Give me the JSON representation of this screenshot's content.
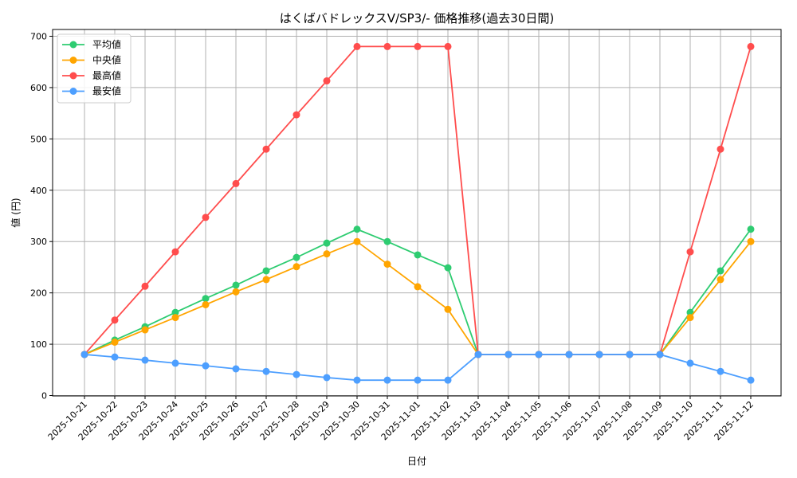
{
  "chart_data": {
    "type": "line",
    "title": "はくばバドレックスV/SP3/- 価格推移(過去30日間)",
    "xlabel": "日付",
    "ylabel": "値 (円)",
    "ylim": [
      0,
      700
    ],
    "yticks": [
      0,
      100,
      200,
      300,
      400,
      500,
      600,
      700
    ],
    "grid": true,
    "legend": "top-left",
    "categories": [
      "2025-10-21",
      "2025-10-22",
      "2025-10-23",
      "2025-10-24",
      "2025-10-25",
      "2025-10-26",
      "2025-10-27",
      "2025-10-28",
      "2025-10-29",
      "2025-10-30",
      "2025-10-31",
      "2025-11-01",
      "2025-11-02",
      "2025-11-03",
      "2025-11-04",
      "2025-11-05",
      "2025-11-06",
      "2025-11-07",
      "2025-11-08",
      "2025-11-09",
      "2025-11-10",
      "2025-11-11",
      "2025-11-12"
    ],
    "series": [
      {
        "name": "平均値",
        "color": "#2ecc71",
        "values": [
          80,
          108,
          134,
          162,
          189,
          215,
          243,
          269,
          297,
          324,
          300,
          274,
          249,
          80,
          80,
          80,
          80,
          80,
          80,
          80,
          162,
          243,
          324
        ]
      },
      {
        "name": "中央値",
        "color": "#ffa500",
        "values": [
          80,
          104,
          128,
          152,
          177,
          202,
          226,
          251,
          276,
          300,
          256,
          212,
          168,
          80,
          80,
          80,
          80,
          80,
          80,
          80,
          152,
          226,
          300
        ]
      },
      {
        "name": "最高値",
        "color": "#ff4d4d",
        "values": [
          80,
          147,
          213,
          280,
          347,
          413,
          480,
          547,
          613,
          680,
          680,
          680,
          680,
          80,
          80,
          80,
          80,
          80,
          80,
          80,
          280,
          480,
          680
        ]
      },
      {
        "name": "最安値",
        "color": "#4d9fff",
        "values": [
          80,
          75,
          69,
          63,
          58,
          52,
          47,
          41,
          35,
          30,
          30,
          30,
          30,
          80,
          80,
          80,
          80,
          80,
          80,
          80,
          63,
          47,
          30
        ]
      }
    ]
  }
}
